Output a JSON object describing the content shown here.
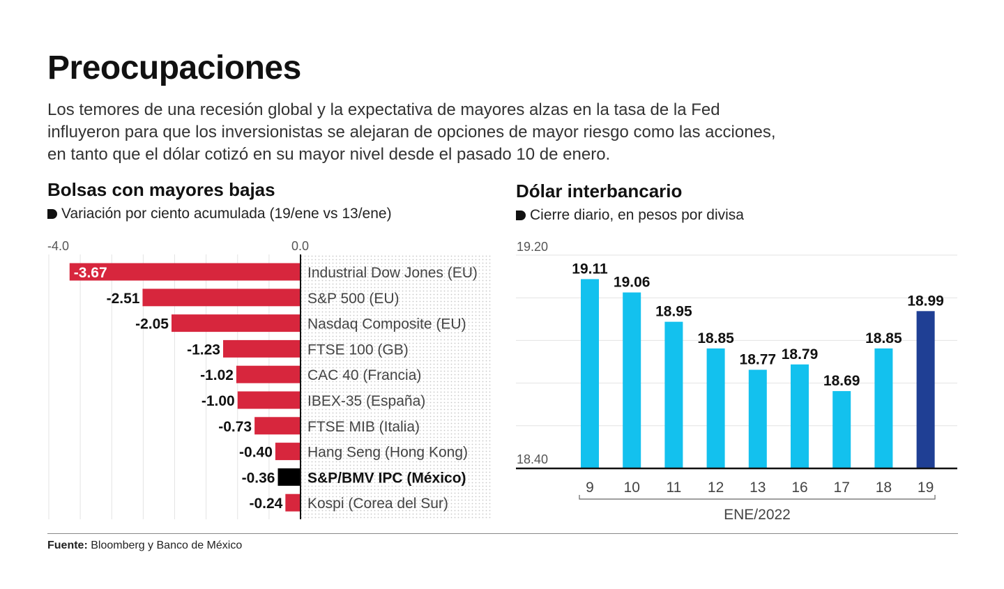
{
  "title": "Preocupaciones",
  "intro_lines": [
    "Los temores de una recesión global y la expectativa de mayores alzas en la tasa de la Fed",
    "influyeron para que los inversionistas se alejaran de opciones de mayor riesgo como las acciones,",
    "en tanto que el dólar cotizó en su mayor nivel desde el pasado 10 de enero."
  ],
  "footer": {
    "label": "Fuente:",
    "text": "Bloomberg y Banco de México"
  },
  "colors": {
    "red": "#d7263d",
    "highlight": "#000000",
    "cyan": "#13c1ee",
    "navy": "#1f3f94"
  },
  "chart_data": [
    {
      "type": "bar",
      "orientation": "horizontal",
      "title": "Bolsas con mayores bajas",
      "subtitle": "Variación por ciento acumulada (19/ene vs 13/ene)",
      "xlim": [
        -4.0,
        0.0
      ],
      "tick_labels": [
        "-4.0",
        "0.0"
      ],
      "grid": true,
      "categories": [
        "Industrial Dow Jones (EU)",
        "S&P 500 (EU)",
        "Nasdaq Composite (EU)",
        "FTSE 100 (GB)",
        "CAC 40 (Francia)",
        "IBEX-35 (España)",
        "FTSE MIB (Italia)",
        "Hang Seng (Hong Kong)",
        "S&P/BMV IPC (México)",
        "Kospi (Corea del Sur)"
      ],
      "values": [
        -3.67,
        -2.51,
        -2.05,
        -1.23,
        -1.02,
        -1.0,
        -0.73,
        -0.4,
        -0.36,
        -0.24
      ],
      "value_labels": [
        "-3.67",
        "-2.51",
        "-2.05",
        "-1.23",
        "-1.02",
        "-1.00",
        "-0.73",
        "-0.40",
        "-0.36",
        "-0.24"
      ],
      "highlight_index": 8
    },
    {
      "type": "bar",
      "title": "Dólar interbancario",
      "subtitle": "Cierre diario, en pesos por divisa",
      "ylim": [
        18.4,
        19.2
      ],
      "tick_labels": [
        "19.20",
        "18.40"
      ],
      "grid": true,
      "categories": [
        "9",
        "10",
        "11",
        "12",
        "13",
        "16",
        "17",
        "18",
        "19"
      ],
      "values": [
        19.11,
        19.06,
        18.95,
        18.85,
        18.77,
        18.79,
        18.69,
        18.85,
        18.99
      ],
      "value_labels": [
        "19.11",
        "19.06",
        "18.95",
        "18.85",
        "18.77",
        "18.79",
        "18.69",
        "18.85",
        "18.99"
      ],
      "xlabel": "ENE/2022",
      "highlight_index": 8
    }
  ]
}
